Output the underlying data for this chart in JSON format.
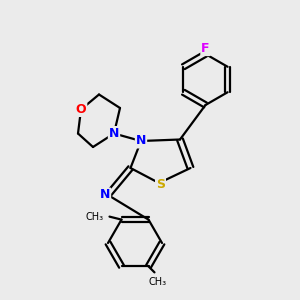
{
  "background_color": "#ebebeb",
  "atom_colors": {
    "N": "#0000ff",
    "O": "#ff0000",
    "S": "#ccaa00",
    "F": "#dd00ff",
    "C": "#000000"
  },
  "figsize": [
    3.0,
    3.0
  ],
  "dpi": 100,
  "lw": 1.6
}
